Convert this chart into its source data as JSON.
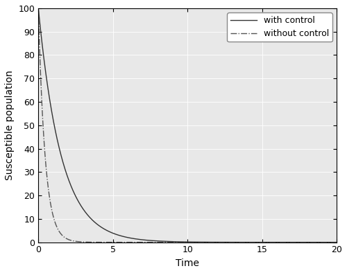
{
  "title": "",
  "xlabel": "Time",
  "ylabel": "Susceptible population",
  "xlim": [
    0,
    20
  ],
  "ylim": [
    0,
    100
  ],
  "xticks": [
    0,
    5,
    10,
    15,
    20
  ],
  "yticks": [
    0,
    10,
    20,
    30,
    40,
    50,
    60,
    70,
    80,
    90,
    100
  ],
  "with_control": {
    "S0": 100,
    "decay_rate": 0.65,
    "label": "with control",
    "linestyle": "-",
    "color": "#333333",
    "linewidth": 1.0
  },
  "without_control": {
    "S0": 100,
    "decay_rate": 2.2,
    "label": "without control",
    "linestyle": "-.",
    "color": "#555555",
    "linewidth": 1.0
  },
  "axes_facecolor": "#e8e8e8",
  "fig_facecolor": "#ffffff",
  "grid_color": "#ffffff",
  "grid_linewidth": 0.6,
  "legend_loc": "upper right",
  "legend_fontsize": 9,
  "axis_label_fontsize": 10,
  "tick_fontsize": 9,
  "legend_frameon": true,
  "legend_facecolor": "#ffffff",
  "legend_edgecolor": "#888888"
}
